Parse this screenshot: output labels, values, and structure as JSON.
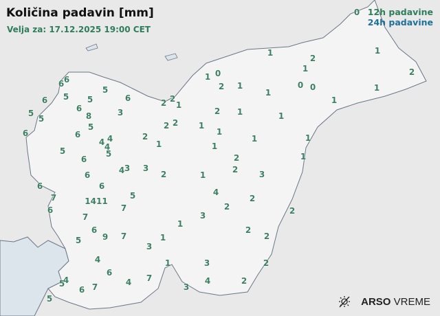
{
  "header": {
    "title": "Količina padavin [mm]",
    "valid": "Velja za: 17.12.2025 19:00 CET"
  },
  "legend": {
    "label_12h": "12h padavine",
    "label_24h": "24h padavine",
    "color_12h": "#2e7d5a",
    "color_24h": "#1f6f9a"
  },
  "branding": {
    "brand_bold": "ARSO",
    "brand_light": "VREME",
    "icon": "sun-icon"
  },
  "colors": {
    "land": "#f4f4f4",
    "outside": "#e9e9e9",
    "sea": "#dde5ec",
    "border": "#6b7686",
    "value": "#3d8063"
  },
  "stations_12h": [
    "0",
    "1",
    "2",
    "1",
    "1",
    "2",
    "0",
    "1",
    "2",
    "1",
    "0",
    "0",
    "1",
    "1",
    "1",
    "6",
    "6",
    "5",
    "5",
    "6",
    "6",
    "5",
    "6",
    "5",
    "8",
    "3",
    "5",
    "2",
    "2",
    "1",
    "6",
    "6",
    "5",
    "2",
    "2",
    "2",
    "1",
    "4",
    "4",
    "4",
    "5",
    "5",
    "6",
    "4",
    "3",
    "3",
    "2",
    "6",
    "6",
    "6",
    "2",
    "1",
    "1",
    "1",
    "1",
    "1",
    "1",
    "1",
    "2",
    "1",
    "2",
    "3",
    "1",
    "4",
    "2",
    "2",
    "2",
    "3",
    "1",
    "2",
    "2",
    "7",
    "1411",
    "5",
    "6",
    "7",
    "7",
    "6",
    "9",
    "7",
    "5",
    "1",
    "3",
    "4",
    "6",
    "4",
    "7",
    "1",
    "3",
    "4",
    "3",
    "5",
    "4",
    "6",
    "7",
    "5",
    "2",
    "2"
  ]
}
